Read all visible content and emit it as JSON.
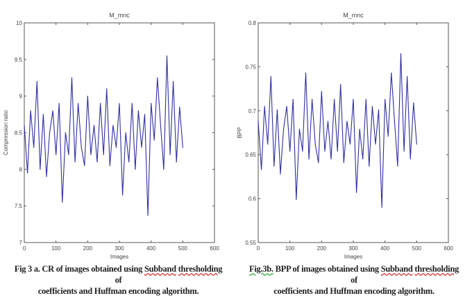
{
  "chart_data": [
    {
      "type": "line",
      "title": "M_mnc",
      "title_main": "M",
      "title_sub": "m",
      "title_tail": "nc",
      "xlabel": "Images",
      "ylabel": "Compression ratio",
      "xlim": [
        0,
        600
      ],
      "ylim": [
        7,
        10
      ],
      "xticks": [
        0,
        100,
        200,
        300,
        400,
        500,
        600
      ],
      "yticks": [
        7,
        7.5,
        8,
        8.5,
        9,
        9.5,
        10
      ],
      "ytick_labels": [
        "7",
        "7.5",
        "8",
        "8.5",
        "9",
        "9.5",
        "10"
      ],
      "grid": false,
      "color": "#2e2ea0",
      "x": [
        0,
        10,
        20,
        30,
        40,
        50,
        60,
        70,
        80,
        90,
        100,
        110,
        120,
        130,
        140,
        150,
        160,
        170,
        180,
        190,
        200,
        210,
        220,
        230,
        240,
        250,
        260,
        270,
        280,
        290,
        300,
        310,
        320,
        330,
        340,
        350,
        360,
        370,
        380,
        390,
        400,
        410,
        420,
        430,
        440,
        450,
        460,
        470,
        480,
        490,
        500
      ],
      "y": [
        8.6,
        7.95,
        8.8,
        8.3,
        9.2,
        8.0,
        8.75,
        7.9,
        8.5,
        8.8,
        8.2,
        8.9,
        7.55,
        8.5,
        8.2,
        9.25,
        8.1,
        8.9,
        8.3,
        8.05,
        9.0,
        8.2,
        8.6,
        8.1,
        8.9,
        8.2,
        9.1,
        8.05,
        8.6,
        8.3,
        8.9,
        7.65,
        8.5,
        8.1,
        8.9,
        8.0,
        8.8,
        8.3,
        8.75,
        7.37,
        8.9,
        8.4,
        9.25,
        8.6,
        8.0,
        9.55,
        8.2,
        9.2,
        8.1,
        8.85,
        8.3
      ]
    },
    {
      "type": "line",
      "title": "M_mnc",
      "title_main": "M",
      "title_sub": "m",
      "title_tail": "nc",
      "xlabel": "Images",
      "ylabel": "BPP",
      "xlim": [
        0,
        600
      ],
      "ylim": [
        0.55,
        0.8
      ],
      "xticks": [
        0,
        100,
        200,
        300,
        400,
        500,
        600
      ],
      "yticks": [
        0.55,
        0.6,
        0.65,
        0.7,
        0.75,
        0.8
      ],
      "ytick_labels": [
        "0.55",
        "0.6",
        "0.65",
        "0.7",
        "0.75",
        "0.8"
      ],
      "grid": false,
      "color": "#2e2ea0",
      "x": [
        0,
        10,
        20,
        30,
        40,
        50,
        60,
        70,
        80,
        90,
        100,
        110,
        120,
        130,
        140,
        150,
        160,
        170,
        180,
        190,
        200,
        210,
        220,
        230,
        240,
        250,
        260,
        270,
        280,
        290,
        300,
        310,
        320,
        330,
        340,
        350,
        360,
        370,
        380,
        390,
        400,
        410,
        420,
        430,
        440,
        450,
        460,
        470,
        480,
        490,
        500
      ],
      "y": [
        0.688,
        0.633,
        0.705,
        0.662,
        0.739,
        0.637,
        0.701,
        0.628,
        0.679,
        0.705,
        0.654,
        0.713,
        0.599,
        0.679,
        0.654,
        0.743,
        0.645,
        0.713,
        0.662,
        0.641,
        0.722,
        0.654,
        0.688,
        0.645,
        0.713,
        0.654,
        0.73,
        0.641,
        0.688,
        0.662,
        0.713,
        0.607,
        0.679,
        0.645,
        0.713,
        0.637,
        0.705,
        0.662,
        0.701,
        0.59,
        0.713,
        0.671,
        0.743,
        0.688,
        0.637,
        0.765,
        0.654,
        0.739,
        0.645,
        0.709,
        0.662
      ]
    }
  ],
  "captions": [
    {
      "pre": "Fig 3 a. CR of images obtained using ",
      "u1": "Subband",
      "mid": "  ",
      "u2": "thresholding",
      "post": " of",
      "line2": "coefficients and Huffman encoding algorithm."
    },
    {
      "pre": "",
      "u0": "Fig.3b.",
      "pre2": " BPP of images obtained using  ",
      "u1": "Subband",
      "mid": "  ",
      "u2": "thresholding",
      "post": " of",
      "line2": "coefficients and Huffman encoding algorithm."
    }
  ]
}
